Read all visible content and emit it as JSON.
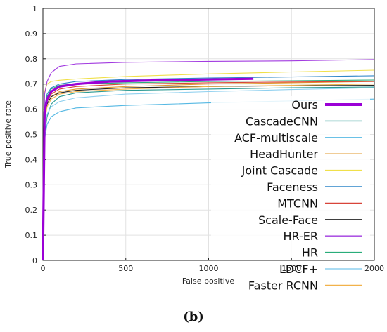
{
  "caption": "(b)",
  "chart_data": {
    "type": "line",
    "xlabel": "False positive",
    "ylabel": "True positive rate",
    "xlim": [
      0,
      2000
    ],
    "ylim": [
      0,
      1
    ],
    "x_ticks": [
      "0",
      "500",
      "1000",
      "1500",
      "2000"
    ],
    "y_ticks": [
      "0",
      "0.1",
      "0.2",
      "0.3",
      "0.4",
      "0.5",
      "0.6",
      "0.7",
      "0.8",
      "0.9",
      "1"
    ],
    "grid": true,
    "legend_position": "right",
    "series": [
      {
        "name": "Ours",
        "color": "#9b00d6",
        "bold": true,
        "x": [
          0,
          10,
          25,
          50,
          100,
          200,
          400,
          700,
          1000,
          1270
        ],
        "y": [
          0.0,
          0.59,
          0.64,
          0.67,
          0.69,
          0.7,
          0.71,
          0.715,
          0.718,
          0.721
        ]
      },
      {
        "name": "CascadeCNN",
        "color": "#2a9a93",
        "x": [
          0,
          10,
          25,
          50,
          100,
          200,
          500,
          1000,
          1500,
          2000
        ],
        "y": [
          0.0,
          0.5,
          0.57,
          0.62,
          0.65,
          0.665,
          0.675,
          0.68,
          0.685,
          0.688
        ]
      },
      {
        "name": "ACF-multiscale",
        "color": "#55b8e3",
        "x": [
          0,
          10,
          25,
          50,
          100,
          200,
          500,
          1000,
          1500,
          2000
        ],
        "y": [
          0.0,
          0.48,
          0.54,
          0.57,
          0.59,
          0.605,
          0.615,
          0.625,
          0.633,
          0.64
        ]
      },
      {
        "name": "HeadHunter",
        "color": "#e09a2c",
        "x": [
          0,
          10,
          25,
          50,
          100,
          200,
          500,
          1000,
          1500,
          2000
        ],
        "y": [
          0.0,
          0.56,
          0.62,
          0.65,
          0.67,
          0.68,
          0.69,
          0.7,
          0.705,
          0.71
        ]
      },
      {
        "name": "Joint Cascade",
        "color": "#f0e04a",
        "x": [
          0,
          10,
          25,
          50,
          100,
          200,
          500,
          1000,
          1500,
          2000
        ],
        "y": [
          0.0,
          0.67,
          0.7,
          0.71,
          0.715,
          0.72,
          0.73,
          0.74,
          0.748,
          0.755
        ]
      },
      {
        "name": "Faceness",
        "color": "#2e86c8",
        "x": [
          0,
          10,
          25,
          50,
          100,
          200,
          500,
          1000,
          1500,
          2000
        ],
        "y": [
          0.0,
          0.61,
          0.66,
          0.685,
          0.7,
          0.71,
          0.718,
          0.724,
          0.728,
          0.733
        ]
      },
      {
        "name": "MTCNN",
        "color": "#d8453a",
        "x": [
          0,
          10,
          25,
          50,
          100,
          200,
          500,
          1000,
          1500,
          2000
        ],
        "y": [
          0.0,
          0.58,
          0.63,
          0.66,
          0.68,
          0.69,
          0.7,
          0.705,
          0.708,
          0.71
        ]
      },
      {
        "name": "Scale-Face",
        "color": "#222222",
        "x": [
          0,
          10,
          25,
          50,
          100,
          200,
          500,
          1000,
          1500,
          2000
        ],
        "y": [
          0.0,
          0.57,
          0.62,
          0.65,
          0.665,
          0.675,
          0.685,
          0.69,
          0.693,
          0.695
        ]
      },
      {
        "name": "HR-ER",
        "color": "#a23be0",
        "x": [
          0,
          10,
          25,
          50,
          100,
          200,
          500,
          1000,
          1500,
          2000
        ],
        "y": [
          0.0,
          0.66,
          0.71,
          0.745,
          0.77,
          0.78,
          0.786,
          0.79,
          0.792,
          0.797
        ]
      },
      {
        "name": "HR",
        "color": "#29ad7a",
        "x": [
          0,
          10,
          25,
          50,
          100,
          200,
          500,
          1000,
          1500,
          2000
        ],
        "y": [
          0.0,
          0.6,
          0.65,
          0.68,
          0.695,
          0.7,
          0.705,
          0.71,
          0.713,
          0.716
        ]
      },
      {
        "name": "LDCF+",
        "color": "#8fd0ef",
        "x": [
          0,
          10,
          25,
          50,
          100,
          200,
          500,
          1000,
          1500,
          2000
        ],
        "y": [
          0.0,
          0.52,
          0.58,
          0.61,
          0.63,
          0.645,
          0.66,
          0.67,
          0.678,
          0.685
        ]
      },
      {
        "name": "Faster RCNN",
        "color": "#f2b24a",
        "x": [
          0,
          10,
          25,
          50,
          100,
          200,
          500,
          1000,
          1500,
          2000
        ],
        "y": [
          0.0,
          0.55,
          0.61,
          0.64,
          0.66,
          0.67,
          0.68,
          0.69,
          0.695,
          0.7
        ]
      }
    ]
  }
}
